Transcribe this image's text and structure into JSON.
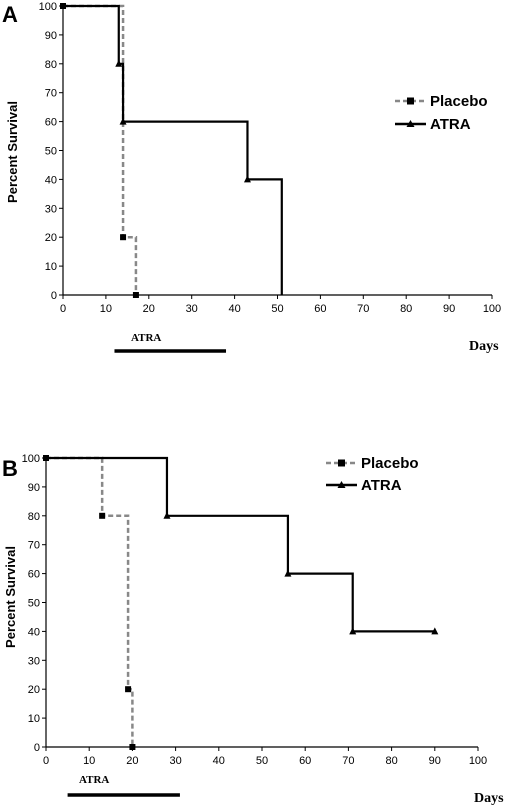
{
  "chart_data": [
    {
      "type": "line",
      "panel": "A",
      "xlabel": "Days",
      "ylabel": "Percent Survival",
      "xlim": [
        0,
        100
      ],
      "ylim": [
        0,
        100
      ],
      "x_ticks": [
        0,
        10,
        20,
        30,
        40,
        50,
        60,
        70,
        80,
        90,
        100
      ],
      "y_ticks": [
        0,
        10,
        20,
        30,
        40,
        50,
        60,
        70,
        80,
        90,
        100
      ],
      "legend_position": "right",
      "series": [
        {
          "name": "Placebo",
          "style": "dashed",
          "color": "#888888",
          "marker": "square",
          "x": [
            0,
            14,
            14,
            17,
            17
          ],
          "y": [
            100,
            100,
            20,
            20,
            0
          ],
          "marker_points": [
            [
              0,
              100
            ],
            [
              14,
              20
            ],
            [
              17,
              0
            ]
          ]
        },
        {
          "name": "ATRA",
          "style": "solid",
          "color": "#000000",
          "marker": "triangle",
          "x": [
            0,
            13,
            13,
            14,
            14,
            43,
            43,
            51,
            51
          ],
          "y": [
            100,
            100,
            80,
            80,
            60,
            60,
            40,
            40,
            0
          ],
          "marker_points": [
            [
              13,
              80
            ],
            [
              14,
              60
            ],
            [
              43,
              40
            ]
          ]
        }
      ],
      "treatment_bar": {
        "label": "ATRA",
        "start": 12,
        "end": 38
      }
    },
    {
      "type": "line",
      "panel": "B",
      "xlabel": "Days",
      "ylabel": "Percent Survival",
      "xlim": [
        0,
        100
      ],
      "ylim": [
        0,
        100
      ],
      "x_ticks": [
        0,
        10,
        20,
        30,
        40,
        50,
        60,
        70,
        80,
        90,
        100
      ],
      "y_ticks": [
        0,
        10,
        20,
        30,
        40,
        50,
        60,
        70,
        80,
        90,
        100
      ],
      "legend_position": "top-right",
      "series": [
        {
          "name": "Placebo",
          "style": "dashed",
          "color": "#888888",
          "marker": "square",
          "x": [
            0,
            13,
            13,
            19,
            19,
            20,
            20
          ],
          "y": [
            100,
            100,
            80,
            80,
            20,
            20,
            0
          ],
          "marker_points": [
            [
              0,
              100
            ],
            [
              13,
              80
            ],
            [
              19,
              20
            ],
            [
              20,
              0
            ]
          ]
        },
        {
          "name": "ATRA",
          "style": "solid",
          "color": "#000000",
          "marker": "triangle",
          "x": [
            0,
            28,
            28,
            56,
            56,
            71,
            71,
            90
          ],
          "y": [
            100,
            100,
            80,
            80,
            60,
            60,
            40,
            40
          ],
          "marker_points": [
            [
              28,
              80
            ],
            [
              56,
              60
            ],
            [
              71,
              40
            ],
            [
              90,
              40
            ]
          ]
        }
      ],
      "treatment_bar": {
        "label": "ATRA",
        "start": 5,
        "end": 31
      }
    }
  ]
}
